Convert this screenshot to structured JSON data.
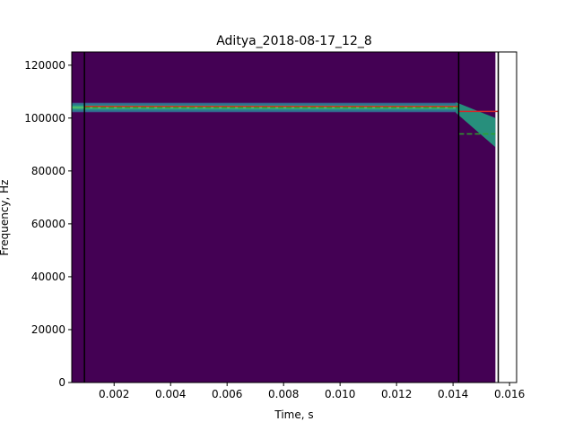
{
  "chart_data": {
    "type": "heatmap",
    "title": "Aditya_2018-08-17_12_8",
    "xlabel": "Time, s",
    "ylabel": "Frequency, Hz",
    "xlim": [
      0.0005,
      0.01625
    ],
    "ylim": [
      0,
      125000
    ],
    "x_ticks": [
      0.002,
      0.004,
      0.006,
      0.008,
      0.01,
      0.012,
      0.014,
      0.016
    ],
    "x_tick_labels": [
      "0.002",
      "0.004",
      "0.006",
      "0.008",
      "0.010",
      "0.012",
      "0.014",
      "0.016"
    ],
    "y_ticks": [
      0,
      20000,
      40000,
      60000,
      80000,
      100000,
      120000
    ],
    "y_tick_labels": [
      "0",
      "20000",
      "40000",
      "60000",
      "80000",
      "100000",
      "120000"
    ],
    "spectrogram_extent_x": [
      0.0005,
      0.0155
    ],
    "background_color": "#440154",
    "call_band": {
      "t_start": 0.0005,
      "t_end": 0.0141,
      "freq_center": 104000,
      "freq_halfwidth": 1800
    },
    "fm_sweep": {
      "t_start": 0.0141,
      "t_end": 0.0155,
      "freq_start": 104000,
      "freq_end": 91000
    },
    "vertical_lines": [
      {
        "x": 0.00095,
        "color": "#000000"
      },
      {
        "x": 0.0142,
        "color": "#000000"
      },
      {
        "x": 0.0156,
        "color": "#000000"
      }
    ],
    "horizontal_segments": [
      {
        "x0": 0.00095,
        "x1": 0.0142,
        "y": 104400,
        "color": "#d62728",
        "style": "solid"
      },
      {
        "x0": 0.00095,
        "x1": 0.0142,
        "y": 104000,
        "color": "#2ca02c",
        "style": "dashed"
      },
      {
        "x0": 0.0142,
        "x1": 0.0156,
        "y": 102500,
        "color": "#d62728",
        "style": "solid"
      },
      {
        "x0": 0.0142,
        "x1": 0.0155,
        "y": 94000,
        "color": "#2ca02c",
        "style": "dashed"
      }
    ]
  }
}
